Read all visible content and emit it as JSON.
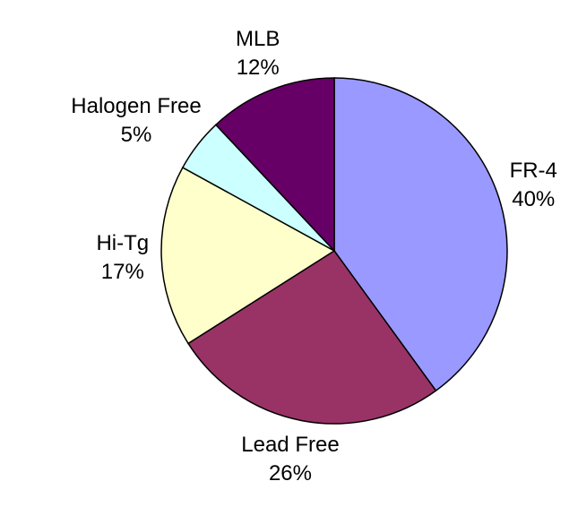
{
  "chart_data": {
    "type": "pie",
    "categories": [
      "FR-4",
      "Lead Free",
      "Hi-Tg",
      "Halogen Free",
      "MLB"
    ],
    "values": [
      40,
      26,
      17,
      5,
      12
    ],
    "value_labels": [
      "40%",
      "26%",
      "17%",
      "5%",
      "12%"
    ],
    "colors": [
      "#9999ff",
      "#993366",
      "#ffffcc",
      "#ccffff",
      "#660066"
    ]
  }
}
